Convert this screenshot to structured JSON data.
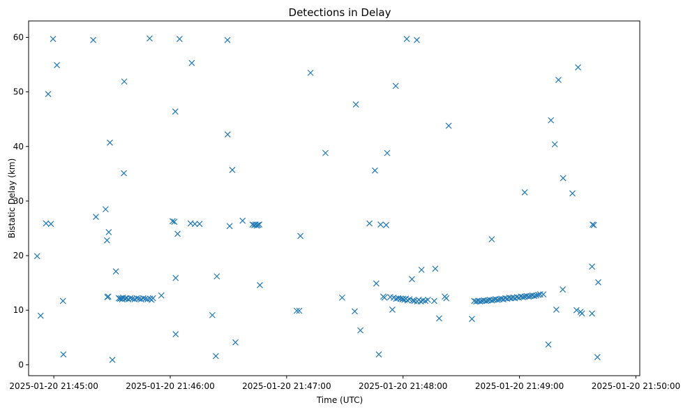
{
  "chart_data": {
    "type": "scatter",
    "title": "Detections in Delay",
    "xlabel": "Time (UTC)",
    "ylabel": "Bistatic Delay (km)",
    "x_unit": "seconds since 2025-01-20 21:44:00",
    "xlim": [
      47,
      362
    ],
    "ylim": [
      -2,
      63
    ],
    "x_ticks": [
      {
        "value": 60,
        "label": "2025-01-20 21:45:00"
      },
      {
        "value": 120,
        "label": "2025-01-20 21:46:00"
      },
      {
        "value": 180,
        "label": "2025-01-20 21:47:00"
      },
      {
        "value": 240,
        "label": "2025-01-20 21:48:00"
      },
      {
        "value": 300,
        "label": "2025-01-20 21:49:00"
      },
      {
        "value": 360,
        "label": "2025-01-20 21:50:00"
      }
    ],
    "y_ticks": [
      {
        "value": 0,
        "label": "0"
      },
      {
        "value": 10,
        "label": "10"
      },
      {
        "value": 20,
        "label": "20"
      },
      {
        "value": 30,
        "label": "30"
      },
      {
        "value": 40,
        "label": "40"
      },
      {
        "value": 50,
        "label": "50"
      },
      {
        "value": 60,
        "label": "60"
      }
    ],
    "grid": false,
    "marker": "x",
    "color": "#1f77b4",
    "series": [
      {
        "name": "detections",
        "points": [
          [
            51.4,
            19.9
          ],
          [
            53.2,
            9.0
          ],
          [
            56.0,
            25.9
          ],
          [
            57.1,
            49.6
          ],
          [
            58.5,
            25.8
          ],
          [
            59.6,
            59.7
          ],
          [
            61.6,
            54.9
          ],
          [
            64.7,
            11.7
          ],
          [
            64.9,
            1.9
          ],
          [
            80.3,
            59.5
          ],
          [
            81.7,
            27.1
          ],
          [
            86.7,
            28.5
          ],
          [
            87.4,
            22.8
          ],
          [
            87.6,
            12.4
          ],
          [
            88.1,
            12.5
          ],
          [
            88.3,
            24.3
          ],
          [
            88.9,
            40.7
          ],
          [
            90.2,
            0.9
          ],
          [
            92.0,
            17.1
          ],
          [
            93.5,
            12.2
          ],
          [
            94.1,
            12.1
          ],
          [
            94.7,
            12.2
          ],
          [
            95.2,
            12.0
          ],
          [
            95.6,
            12.3
          ],
          [
            96.1,
            35.1
          ],
          [
            96.3,
            51.9
          ],
          [
            96.7,
            12.1
          ],
          [
            97.5,
            12.2
          ],
          [
            98.4,
            12.0
          ],
          [
            99.5,
            12.2
          ],
          [
            100.6,
            12.1
          ],
          [
            101.7,
            12.0
          ],
          [
            102.8,
            12.2
          ],
          [
            103.9,
            12.1
          ],
          [
            105.0,
            12.0
          ],
          [
            106.1,
            12.2
          ],
          [
            107.2,
            12.1
          ],
          [
            108.3,
            12.0
          ],
          [
            109.4,
            59.8
          ],
          [
            109.6,
            12.1
          ],
          [
            110.4,
            11.9
          ],
          [
            111.1,
            12.2
          ],
          [
            115.4,
            12.7
          ],
          [
            121.2,
            26.3
          ],
          [
            122.1,
            26.2
          ],
          [
            122.6,
            46.4
          ],
          [
            122.8,
            15.9
          ],
          [
            122.8,
            5.6
          ],
          [
            123.8,
            24.0
          ],
          [
            124.8,
            59.7
          ],
          [
            130.5,
            25.9
          ],
          [
            131.1,
            55.3
          ],
          [
            132.7,
            25.8
          ],
          [
            135.1,
            25.8
          ],
          [
            141.7,
            9.1
          ],
          [
            143.5,
            1.6
          ],
          [
            144.0,
            16.2
          ],
          [
            149.5,
            59.5
          ],
          [
            149.6,
            42.2
          ],
          [
            150.6,
            25.4
          ],
          [
            152.0,
            35.7
          ],
          [
            153.6,
            4.1
          ],
          [
            157.3,
            26.4
          ],
          [
            162.4,
            25.7
          ],
          [
            163.3,
            25.6
          ],
          [
            164.0,
            25.7
          ],
          [
            164.6,
            25.5
          ],
          [
            165.2,
            25.6
          ],
          [
            165.9,
            25.7
          ],
          [
            166.2,
            14.6
          ],
          [
            185.2,
            9.9
          ],
          [
            186.5,
            9.9
          ],
          [
            187.1,
            23.6
          ],
          [
            192.3,
            53.5
          ],
          [
            200.0,
            38.8
          ],
          [
            208.6,
            12.3
          ],
          [
            215.1,
            9.8
          ],
          [
            215.7,
            47.7
          ],
          [
            218.0,
            6.3
          ],
          [
            222.7,
            25.9
          ],
          [
            225.5,
            35.6
          ],
          [
            226.2,
            14.9
          ],
          [
            227.5,
            1.9
          ],
          [
            228.4,
            25.7
          ],
          [
            229.8,
            12.5
          ],
          [
            230.4,
            12.3
          ],
          [
            231.3,
            25.6
          ],
          [
            231.8,
            38.8
          ],
          [
            233.4,
            12.4
          ],
          [
            234.5,
            10.1
          ],
          [
            235.1,
            12.3
          ],
          [
            236.2,
            51.1
          ],
          [
            236.5,
            12.1
          ],
          [
            237.5,
            12.2
          ],
          [
            238.6,
            12.1
          ],
          [
            239.7,
            12.0
          ],
          [
            240.0,
            12.1
          ],
          [
            240.7,
            11.9
          ],
          [
            241.5,
            12.1
          ],
          [
            241.9,
            59.7
          ],
          [
            242.3,
            11.8
          ],
          [
            243.3,
            12.0
          ],
          [
            244.6,
            15.7
          ],
          [
            245.0,
            11.8
          ],
          [
            245.8,
            11.7
          ],
          [
            247.1,
            59.5
          ],
          [
            247.3,
            11.6
          ],
          [
            248.1,
            11.9
          ],
          [
            249.1,
            11.6
          ],
          [
            249.5,
            17.4
          ],
          [
            250.2,
            11.8
          ],
          [
            251.5,
            11.7
          ],
          [
            252.8,
            11.9
          ],
          [
            256.1,
            11.7
          ],
          [
            256.6,
            17.6
          ],
          [
            258.6,
            8.5
          ],
          [
            261.5,
            12.5
          ],
          [
            262.3,
            12.2
          ],
          [
            263.5,
            43.8
          ],
          [
            275.5,
            8.4
          ],
          [
            276.7,
            11.7
          ],
          [
            277.7,
            11.6
          ],
          [
            278.7,
            11.7
          ],
          [
            279.7,
            11.6
          ],
          [
            280.7,
            11.7
          ],
          [
            281.7,
            11.8
          ],
          [
            282.7,
            11.7
          ],
          [
            283.7,
            11.8
          ],
          [
            284.7,
            11.9
          ],
          [
            285.7,
            23.0
          ],
          [
            285.7,
            11.8
          ],
          [
            286.7,
            11.9
          ],
          [
            287.7,
            12.0
          ],
          [
            288.7,
            11.9
          ],
          [
            289.7,
            12.0
          ],
          [
            290.7,
            12.1
          ],
          [
            291.7,
            12.0
          ],
          [
            292.7,
            12.2
          ],
          [
            293.7,
            12.1
          ],
          [
            294.7,
            12.3
          ],
          [
            295.7,
            12.2
          ],
          [
            296.7,
            12.3
          ],
          [
            297.7,
            12.2
          ],
          [
            298.7,
            12.4
          ],
          [
            299.7,
            12.3
          ],
          [
            300.7,
            12.5
          ],
          [
            301.7,
            12.4
          ],
          [
            302.7,
            31.6
          ],
          [
            302.7,
            12.5
          ],
          [
            303.7,
            12.6
          ],
          [
            304.7,
            12.5
          ],
          [
            305.7,
            12.6
          ],
          [
            306.7,
            12.7
          ],
          [
            307.7,
            12.6
          ],
          [
            308.7,
            12.7
          ],
          [
            309.7,
            12.8
          ],
          [
            310.7,
            12.9
          ],
          [
            312.3,
            12.9
          ],
          [
            314.9,
            3.7
          ],
          [
            316.2,
            44.8
          ],
          [
            318.2,
            40.4
          ],
          [
            319.0,
            10.1
          ],
          [
            320.1,
            52.2
          ],
          [
            322.3,
            13.8
          ],
          [
            322.5,
            34.2
          ],
          [
            327.3,
            31.4
          ],
          [
            329.4,
            10.0
          ],
          [
            330.2,
            54.5
          ],
          [
            331.5,
            9.7
          ],
          [
            332.2,
            9.4
          ],
          [
            337.4,
            18.0
          ],
          [
            337.4,
            9.4
          ],
          [
            337.7,
            25.7
          ],
          [
            338.3,
            25.6
          ],
          [
            340.2,
            1.4
          ],
          [
            340.6,
            15.1
          ]
        ]
      }
    ]
  }
}
